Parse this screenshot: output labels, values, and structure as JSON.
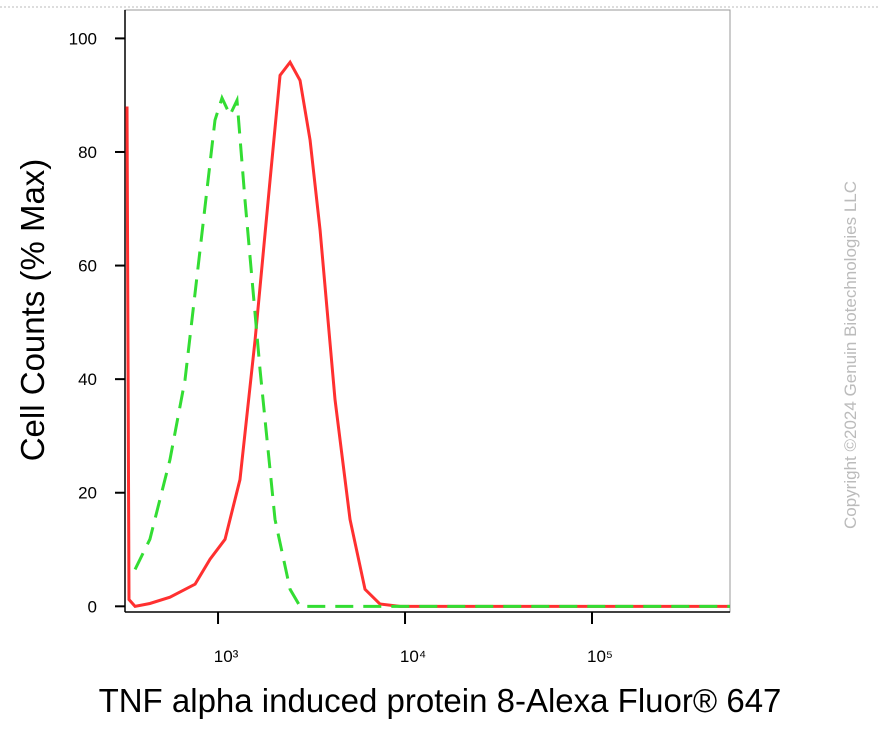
{
  "chart_data": {
    "type": "line",
    "xlabel": "TNF alpha induced protein 8-Alexa Fluor® 647",
    "ylabel": "Cell Counts (% Max)",
    "watermark": "Copyright ©2024 Genuin Biotechnologies LLC",
    "xscale": "log",
    "xlim": [
      318,
      547000
    ],
    "ylim": [
      -1,
      105
    ],
    "xticks": [
      {
        "value": 1000,
        "label": "10³"
      },
      {
        "value": 10000,
        "label": "10⁴"
      },
      {
        "value": 100000,
        "label": "10⁵"
      }
    ],
    "yticks": [
      0,
      20,
      40,
      60,
      80,
      100
    ],
    "series": [
      {
        "color": "#ff3030",
        "line_style": "solid",
        "x": [
          326,
          334,
          360,
          432,
          553,
          754,
          906,
          1090,
          1310,
          1578,
          1897,
          2146,
          2428,
          2745,
          3106,
          3512,
          4223,
          5080,
          6110,
          7350,
          9400,
          19700,
          547000
        ],
        "values": [
          88,
          1.2,
          0,
          0.5,
          1.6,
          3.9,
          8.3,
          11.8,
          22.3,
          46.9,
          75,
          93.5,
          95.8,
          92.6,
          82.1,
          66.3,
          36.4,
          15.3,
          3,
          0.4,
          0,
          0,
          0
        ]
      },
      {
        "color": "#33dd33",
        "line_style": "dashed",
        "x": [
          360,
          432,
          553,
          666,
          801,
          963,
          1050,
          1159,
          1263,
          1394,
          1677,
          2017,
          2428,
          2745,
          3512,
          547000
        ],
        "values": [
          6.5,
          11.8,
          25.8,
          39.9,
          62.7,
          85.6,
          89.5,
          86.5,
          89.1,
          71.5,
          41.7,
          15.3,
          3,
          0,
          0,
          0
        ]
      }
    ]
  }
}
